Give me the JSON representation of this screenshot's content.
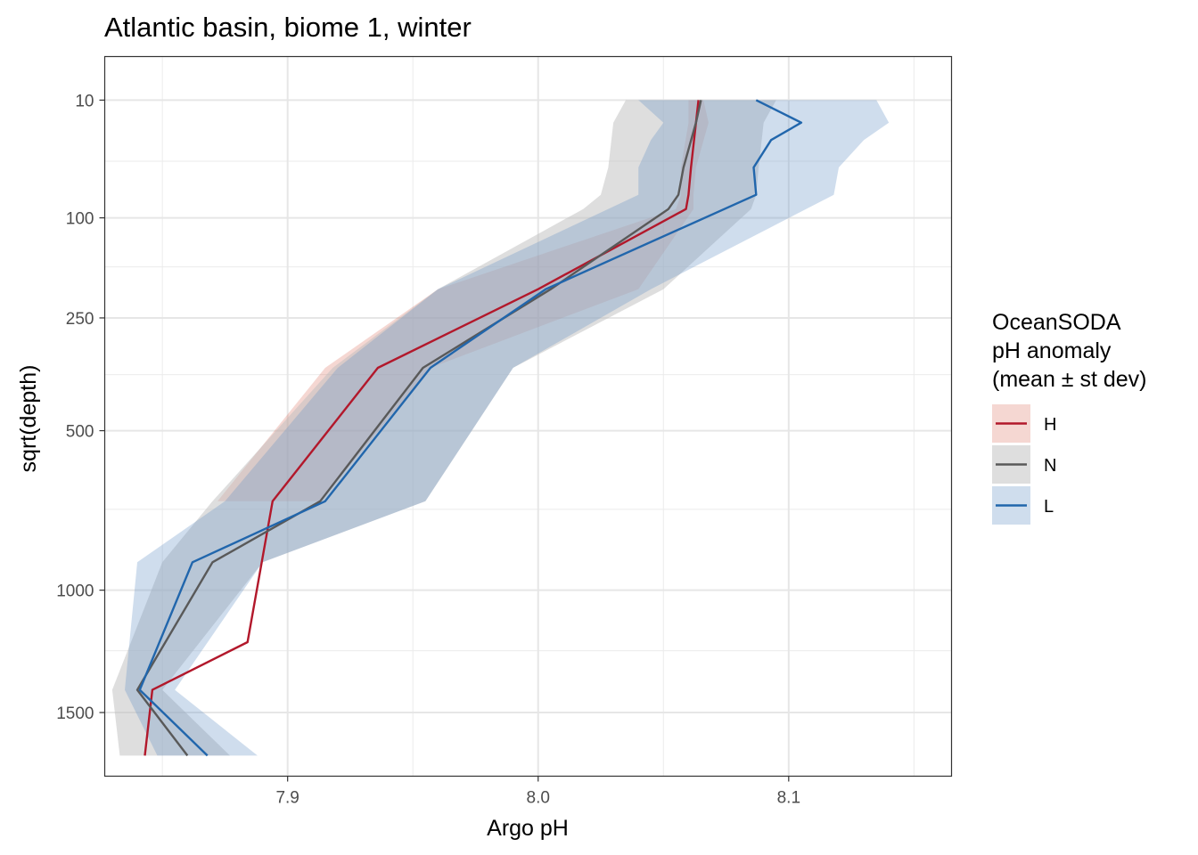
{
  "chart_data": {
    "type": "line",
    "title": "Atlantic basin, biome 1, winter",
    "xlabel": "Argo pH",
    "ylabel": "sqrt(depth)",
    "y_scale": "sqrt",
    "y_reversed": true,
    "xlim": [
      7.827,
      8.165
    ],
    "ylim": [
      1800,
      0.4
    ],
    "x_ticks": [
      7.9,
      8.0,
      8.1
    ],
    "x_tick_labels": [
      "7.9",
      "8.0",
      "8.1"
    ],
    "x_minor_ticks": [
      7.85,
      7.95,
      8.05,
      8.15
    ],
    "y_ticks": [
      10,
      100,
      250,
      500,
      1000,
      1500
    ],
    "y_tick_labels": [
      "10",
      "100",
      "250",
      "500",
      "1000",
      "1500"
    ],
    "y_minor_ticks": [
      45,
      165,
      365,
      725,
      1235
    ],
    "grid": true,
    "legend": {
      "title_lines": [
        "OceanSODA",
        "pH anomaly",
        "(mean ± st dev)"
      ],
      "position": "right"
    },
    "series": [
      {
        "name": "H",
        "color": "#b2182b",
        "fill": "#d6604d",
        "fill_opacity": 0.25,
        "depth": [
          10,
          20,
          50,
          75,
          90,
          200,
          350,
          700,
          1200,
          1400,
          1700
        ],
        "mean": [
          8.064,
          8.063,
          8.061,
          8.06,
          8.059,
          8.0,
          7.936,
          7.894,
          7.884,
          7.846,
          7.843
        ],
        "lower": [
          8.06,
          8.06,
          8.057,
          8.057,
          8.055,
          7.96,
          7.915,
          7.872,
          null,
          null,
          null
        ],
        "upper": [
          8.066,
          8.068,
          8.063,
          8.062,
          8.062,
          8.04,
          7.957,
          7.913,
          null,
          null,
          null
        ]
      },
      {
        "name": "N",
        "color": "#595959",
        "fill": "#bdbdbd",
        "fill_opacity": 0.5,
        "depth": [
          10,
          20,
          50,
          75,
          90,
          200,
          350,
          700,
          900,
          1400,
          1700
        ],
        "mean": [
          8.065,
          8.063,
          8.058,
          8.056,
          8.052,
          8.005,
          7.954,
          7.913,
          7.87,
          7.84,
          7.86
        ],
        "lower": [
          8.035,
          8.03,
          8.028,
          8.025,
          8.018,
          7.96,
          7.918,
          7.87,
          7.85,
          7.83,
          7.833
        ],
        "upper": [
          8.095,
          8.09,
          8.088,
          8.087,
          8.085,
          8.05,
          7.99,
          7.955,
          7.89,
          7.85,
          7.877
        ]
      },
      {
        "name": "L",
        "color": "#2166ac",
        "fill": "#6a95c8",
        "fill_opacity": 0.32,
        "depth": [
          10,
          20,
          30,
          50,
          75,
          200,
          350,
          700,
          900,
          1400,
          1700
        ],
        "mean": [
          8.087,
          8.105,
          8.093,
          8.086,
          8.087,
          8.003,
          7.957,
          7.915,
          7.862,
          7.841,
          7.868
        ],
        "lower": [
          8.04,
          8.05,
          8.045,
          8.04,
          8.04,
          7.96,
          7.92,
          7.875,
          7.84,
          7.835,
          7.848
        ],
        "upper": [
          8.135,
          8.14,
          8.13,
          8.12,
          8.118,
          8.045,
          7.99,
          7.955,
          7.89,
          7.855,
          7.888
        ]
      }
    ]
  }
}
